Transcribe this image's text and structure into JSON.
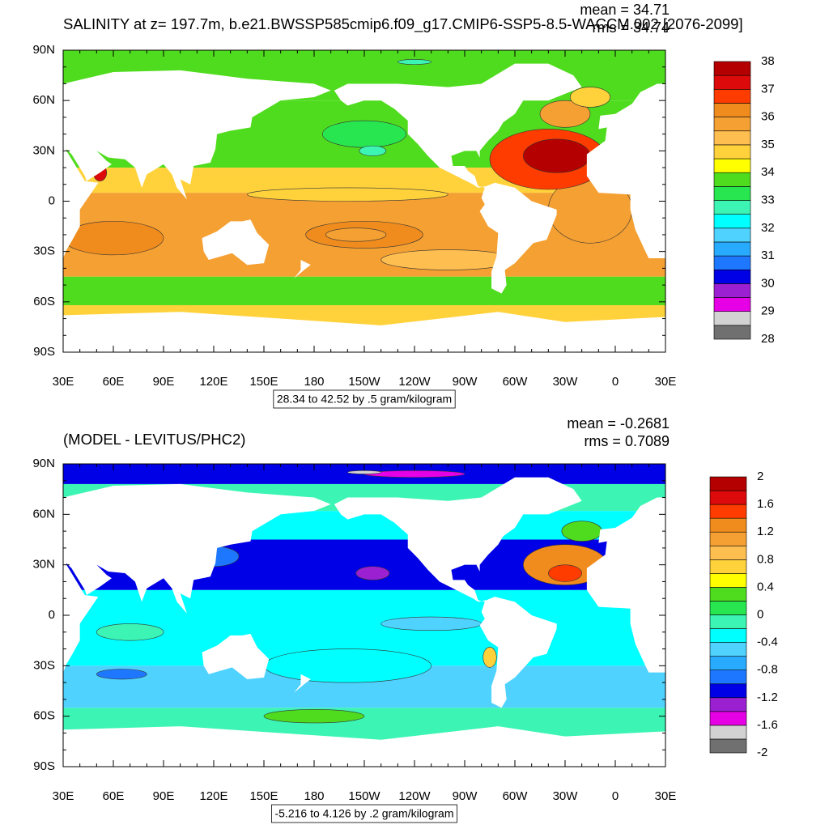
{
  "panels": [
    {
      "title": "SALINITY at z= 197.7m, b.e21.BWSSP585cmip6.f09_g17.CMIP6-SSP5-8.5-WACCM.002 [2076-2099]",
      "mean": "mean = 34.71",
      "rms": "rms = 34.74",
      "colorbar_labels": [
        38,
        37,
        36,
        35,
        34,
        33,
        32,
        31,
        30,
        29,
        28
      ],
      "footer": "28.34 to 42.52 by .5 gram/kilogram"
    },
    {
      "title": "(MODEL - LEVITUS/PHC2)",
      "mean": "mean = -0.2681",
      "rms": "rms = 0.7089",
      "colorbar_labels": [
        2,
        1.6,
        1.2,
        0.8,
        0.4,
        0,
        -0.4,
        -0.8,
        -1.2,
        -1.6,
        -2
      ],
      "footer": "-5.216 to 4.126 by .2 gram/kilogram"
    }
  ],
  "lat_labels": [
    "90N",
    "60N",
    "30N",
    "0",
    "30S",
    "60S",
    "90S"
  ],
  "lon_labels": [
    "30E",
    "60E",
    "90E",
    "120E",
    "150E",
    "180",
    "150W",
    "120W",
    "90W",
    "60W",
    "30W",
    "0",
    "30E"
  ],
  "colormap": [
    "#707070",
    "#d2d2d2",
    "#e600e6",
    "#9b20d2",
    "#0000e6",
    "#1e78ff",
    "#28aaff",
    "#50d2ff",
    "#00ffff",
    "#3cf5b4",
    "#28e650",
    "#50dc1e",
    "#ffff00",
    "#ffd23c",
    "#ffbe50",
    "#f5a032",
    "#f08c1e",
    "#ff3c00",
    "#dc0a0a",
    "#b40000"
  ]
}
